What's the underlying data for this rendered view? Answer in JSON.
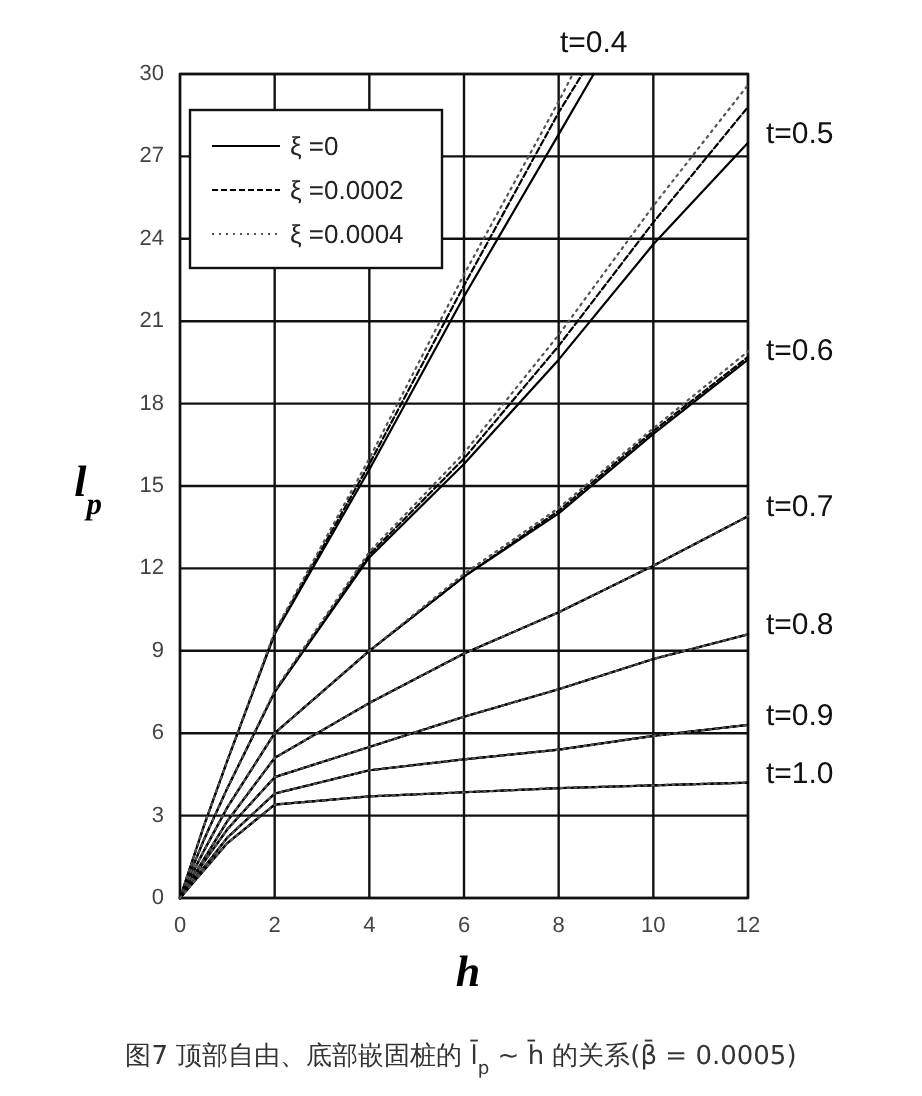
{
  "chart_data": {
    "type": "line",
    "xlabel": "h",
    "ylabel": "l$_{p}$",
    "x": [
      0,
      0.5,
      1,
      2,
      4,
      6,
      8,
      10,
      12
    ],
    "xlim": [
      0,
      12
    ],
    "xticks": [
      0,
      2,
      4,
      6,
      8,
      10,
      12
    ],
    "ylim": [
      0,
      30
    ],
    "yticks": [
      0,
      3,
      6,
      9,
      12,
      15,
      18,
      21,
      24,
      27,
      30
    ],
    "grid": true,
    "legend": "top left",
    "marker": "none",
    "series": [
      {
        "name": "ξ =0",
        "color": "#000000",
        "line_style": "solid",
        "x": [
          0,
          0.5,
          1,
          2,
          4,
          6,
          8,
          8.74
        ],
        "values": [
          0,
          2.6,
          5.0,
          9.6,
          15.6,
          21.9,
          27.8,
          30
        ]
      },
      {
        "name": "ξ =0.0002",
        "color": "#000000",
        "line_style": "dashed",
        "x": [
          0,
          0.5,
          1,
          2,
          4,
          6,
          8,
          8.5
        ],
        "values": [
          0,
          2.6,
          5.0,
          9.65,
          15.8,
          22.3,
          28.6,
          30
        ]
      },
      {
        "name": "ξ =0.0004",
        "color": "#555555",
        "line_style": "dotted",
        "x": [
          0,
          0.5,
          1,
          2,
          4,
          6,
          8,
          8.3
        ],
        "values": [
          0,
          2.6,
          5.0,
          9.7,
          16.0,
          22.7,
          29.0,
          30
        ]
      },
      {
        "color": "#000000",
        "line_style": "solid",
        "values": [
          0,
          2.1,
          4.0,
          7.5,
          12.4,
          15.8,
          19.6,
          23.8,
          27.5
        ]
      },
      {
        "color": "#000000",
        "line_style": "dashed",
        "values": [
          0,
          2.1,
          4.0,
          7.5,
          12.5,
          16.0,
          20.1,
          24.6,
          28.8
        ]
      },
      {
        "color": "#555555",
        "line_style": "dotted",
        "values": [
          0,
          2.1,
          4.0,
          7.55,
          12.6,
          16.2,
          20.5,
          25.2,
          29.6
        ]
      },
      {
        "color": "#000000",
        "line_style": "solid",
        "values": [
          0,
          1.7,
          3.3,
          6.0,
          9.0,
          11.7,
          14.0,
          16.9,
          19.6
        ]
      },
      {
        "color": "#000000",
        "line_style": "dashed",
        "values": [
          0,
          1.7,
          3.3,
          6.0,
          9.0,
          11.7,
          14.1,
          17.0,
          19.7
        ]
      },
      {
        "color": "#555555",
        "line_style": "dotted",
        "values": [
          0,
          1.7,
          3.3,
          6.0,
          9.0,
          11.8,
          14.2,
          17.1,
          19.9
        ]
      },
      {
        "color": "#000000",
        "line_style": "solid",
        "values": [
          0,
          1.4,
          2.8,
          5.1,
          7.1,
          8.9,
          10.4,
          12.1,
          13.9
        ]
      },
      {
        "color": "#000000",
        "line_style": "dashed",
        "values": [
          0,
          1.4,
          2.8,
          5.1,
          7.1,
          8.9,
          10.4,
          12.1,
          13.9
        ]
      },
      {
        "color": "#555555",
        "line_style": "dotted",
        "values": [
          0,
          1.4,
          2.8,
          5.1,
          7.1,
          8.9,
          10.4,
          12.1,
          13.9
        ]
      },
      {
        "color": "#000000",
        "line_style": "solid",
        "values": [
          0,
          1.3,
          2.5,
          4.4,
          5.5,
          6.6,
          7.6,
          8.7,
          9.6
        ]
      },
      {
        "color": "#000000",
        "line_style": "dashed",
        "values": [
          0,
          1.3,
          2.5,
          4.4,
          5.5,
          6.6,
          7.6,
          8.7,
          9.6
        ]
      },
      {
        "color": "#555555",
        "line_style": "dotted",
        "values": [
          0,
          1.3,
          2.5,
          4.4,
          5.5,
          6.6,
          7.6,
          8.7,
          9.6
        ]
      },
      {
        "color": "#000000",
        "line_style": "solid",
        "values": [
          0,
          1.1,
          2.2,
          3.8,
          4.65,
          5.05,
          5.4,
          5.9,
          6.3
        ]
      },
      {
        "color": "#000000",
        "line_style": "dashed",
        "values": [
          0,
          1.1,
          2.2,
          3.8,
          4.65,
          5.05,
          5.4,
          5.9,
          6.3
        ]
      },
      {
        "color": "#555555",
        "line_style": "dotted",
        "values": [
          0,
          1.1,
          2.2,
          3.8,
          4.65,
          5.05,
          5.4,
          5.9,
          6.3
        ]
      },
      {
        "color": "#000000",
        "line_style": "solid",
        "values": [
          0,
          1.0,
          2.0,
          3.4,
          3.7,
          3.85,
          4.0,
          4.1,
          4.2
        ]
      },
      {
        "color": "#000000",
        "line_style": "dashed",
        "values": [
          0,
          1.0,
          2.0,
          3.4,
          3.7,
          3.85,
          4.0,
          4.1,
          4.2
        ]
      },
      {
        "color": "#555555",
        "line_style": "dotted",
        "values": [
          0,
          1.0,
          2.0,
          3.4,
          3.7,
          3.85,
          4.0,
          4.1,
          4.2
        ]
      }
    ],
    "annotations": [
      "t=0.4",
      "t=0.5",
      "t=0.6",
      "t=0.7",
      "t=0.8",
      "t=0.9",
      "t=1.0",
      "图7 顶部自由、底部嵌固桩的 l̄$_{p}$ ~ h̄ 的关系(β̄ = 0.0005)"
    ]
  }
}
